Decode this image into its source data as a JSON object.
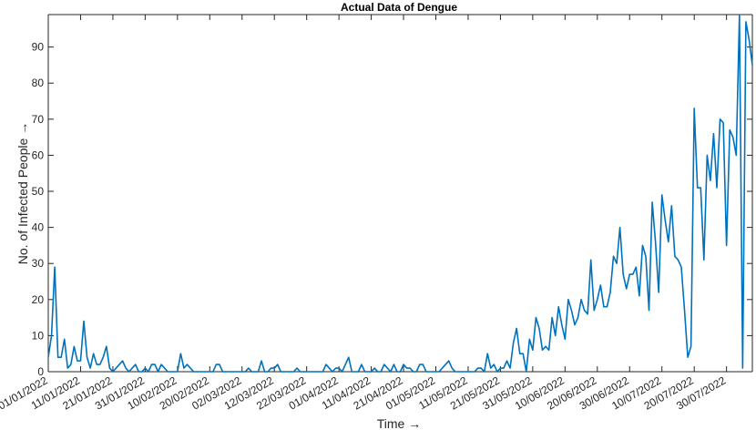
{
  "chart_data": {
    "type": "line",
    "title": "Actual Data of Dengue",
    "xlabel": "Time →",
    "ylabel": "No. of Infected People →",
    "ylim": [
      0,
      99
    ],
    "yticks": [
      0,
      10,
      20,
      30,
      40,
      50,
      60,
      70,
      80,
      90
    ],
    "start_date": "2022-01-01",
    "xticks": [
      "01/01/2022",
      "11/01/2022",
      "21/01/2022",
      "31/01/2022",
      "10/02/2022",
      "20/02/2022",
      "02/03/2022",
      "12/03/2022",
      "22/03/2022",
      "01/04/2022",
      "11/04/2022",
      "21/04/2022",
      "01/05/2022",
      "11/05/2022",
      "21/05/2022",
      "31/05/2022",
      "10/06/2022",
      "20/06/2022",
      "30/06/2022",
      "10/07/2022",
      "20/07/2022",
      "30/07/2022"
    ],
    "grid": false,
    "colors": {
      "line": "#0072BD",
      "axis": "#262626"
    },
    "series": [
      {
        "values": [
          4,
          10,
          29,
          4,
          4,
          9,
          1,
          2,
          7,
          3,
          3,
          14,
          4,
          1,
          5,
          2,
          2,
          4,
          7,
          1,
          0,
          1,
          2,
          3,
          1,
          0,
          1,
          2,
          0,
          0,
          1,
          0,
          2,
          2,
          0,
          2,
          1,
          0,
          0,
          0,
          0,
          5,
          1,
          2,
          1,
          0,
          0,
          0,
          0,
          0,
          0,
          0,
          2,
          2,
          0,
          0,
          0,
          0,
          0,
          0,
          0,
          0,
          1,
          0,
          0,
          0,
          3,
          0,
          0,
          1,
          1,
          2,
          0,
          0,
          0,
          0,
          0,
          1,
          0,
          0,
          0,
          0,
          0,
          0,
          0,
          0,
          2,
          1,
          0,
          1,
          1,
          0,
          2,
          4,
          0,
          0,
          0,
          2,
          0,
          0,
          0,
          1,
          0,
          0,
          2,
          1,
          0,
          2,
          0,
          0,
          2,
          1,
          1,
          0,
          0,
          2,
          2,
          0,
          0,
          0,
          0,
          0,
          1,
          2,
          3,
          1,
          0,
          0,
          0,
          0,
          0,
          0,
          0,
          1,
          1,
          0,
          5,
          1,
          2,
          0,
          1,
          1,
          3,
          1,
          8,
          12,
          5,
          5,
          0,
          9,
          6,
          15,
          12,
          6,
          7,
          6,
          15,
          10,
          18,
          13,
          9,
          20,
          17,
          13,
          15,
          20,
          17,
          16,
          31,
          17,
          20,
          24,
          18,
          18,
          22,
          32,
          30,
          40,
          27,
          23,
          27,
          27,
          29,
          21,
          35,
          32,
          17,
          47,
          36,
          22,
          49,
          42,
          36,
          46,
          32,
          31,
          29,
          17,
          4,
          7,
          73,
          51,
          51,
          31,
          60,
          53,
          66,
          51,
          70,
          69,
          35,
          67,
          65,
          60,
          99,
          1,
          97,
          92,
          85
        ]
      }
    ]
  }
}
